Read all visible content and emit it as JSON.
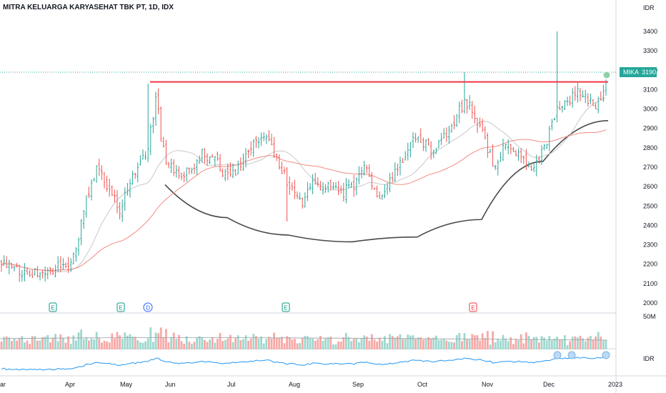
{
  "header": {
    "title": "MITRA KELUARGA KARYASEHAT TBK PT, 1D, IDX"
  },
  "price_axis": {
    "currency": "IDR",
    "ticks": [
      "3400",
      "3300",
      "3200",
      "3100",
      "3000",
      "2900",
      "2800",
      "2700",
      "2600",
      "2500",
      "2400",
      "2300",
      "2200",
      "2100",
      "2000"
    ]
  },
  "volume_axis": {
    "label": "50M",
    "currency_label": "IDR"
  },
  "price_tag": {
    "symbol": "MIKA",
    "value": "3190"
  },
  "x_axis": {
    "labels": [
      "ar",
      "Apr",
      "May",
      "Jun",
      "Jul",
      "Aug",
      "Sep",
      "Oct",
      "Nov",
      "Dec",
      "2023"
    ]
  },
  "event_markers": [
    {
      "label": "E",
      "kind": "earnings",
      "color": "#089981"
    },
    {
      "label": "E",
      "kind": "earnings",
      "color": "#089981"
    },
    {
      "label": "D",
      "kind": "dividend",
      "color": "#2962ff"
    },
    {
      "label": "E",
      "kind": "earnings",
      "color": "#089981"
    },
    {
      "label": "E",
      "kind": "earnings",
      "color": "#f23645"
    }
  ],
  "colors": {
    "up": "#26a69a",
    "down": "#ef5350",
    "resistance": "#f23645",
    "cup": "#4a4a4a",
    "ma_fast": "#c8c8c8",
    "ma_slow": "#f28b82",
    "cmf": "#2196f3",
    "tag_bg": "#26a69a"
  },
  "chart_data": {
    "type": "ohlc",
    "title": "MITRA KELUARGA KARYASEHAT TBK PT, 1D, IDX",
    "x_unit": "date",
    "x": [
      "Mar",
      "Apr",
      "May",
      "Jun",
      "Jul",
      "Aug",
      "Sep",
      "Oct",
      "Nov",
      "Dec",
      "2023"
    ],
    "ylim": [
      1950,
      3480
    ],
    "price_path": [
      [
        "Mar",
        2210
      ],
      [
        "Mar",
        2150
      ],
      [
        "Apr",
        2190
      ],
      [
        "Apr",
        2280
      ],
      [
        "Apr",
        2560
      ],
      [
        "Apr",
        2700
      ],
      [
        "Apr",
        2600
      ],
      [
        "May",
        2480
      ],
      [
        "May",
        2620
      ],
      [
        "May",
        2700
      ],
      [
        "May",
        2760
      ],
      [
        "May",
        3060
      ],
      [
        "Jun",
        2720
      ],
      [
        "Jun",
        2660
      ],
      [
        "Jun",
        2680
      ],
      [
        "Jun",
        2780
      ],
      [
        "Jun",
        2740
      ],
      [
        "Jul",
        2650
      ],
      [
        "Jul",
        2700
      ],
      [
        "Jul",
        2820
      ],
      [
        "Jul",
        2860
      ],
      [
        "Jul",
        2760
      ],
      [
        "Aug",
        2600
      ],
      [
        "Aug",
        2500
      ],
      [
        "Aug",
        2620
      ],
      [
        "Aug",
        2600
      ],
      [
        "Aug",
        2560
      ],
      [
        "Sep",
        2600
      ],
      [
        "Sep",
        2700
      ],
      [
        "Sep",
        2560
      ],
      [
        "Sep",
        2620
      ],
      [
        "Sep",
        2760
      ],
      [
        "Oct",
        2860
      ],
      [
        "Oct",
        2760
      ],
      [
        "Oct",
        2900
      ],
      [
        "Oct",
        3050
      ],
      [
        "Nov",
        2880
      ],
      [
        "Nov",
        2700
      ],
      [
        "Nov",
        2820
      ],
      [
        "Nov",
        2760
      ],
      [
        "Nov",
        2680
      ],
      [
        "Dec",
        2780
      ],
      [
        "Dec",
        2980
      ],
      [
        "Dec",
        3050
      ],
      [
        "Dec",
        3100
      ],
      [
        "Dec",
        2990
      ],
      [
        "2023",
        3190
      ]
    ],
    "series": [
      {
        "name": "MIKA",
        "type": "ohlc",
        "last": 3190
      },
      {
        "type": "line",
        "role": "resistance",
        "value": 3140,
        "from": "May",
        "to": "2023"
      },
      {
        "type": "curve",
        "role": "cup",
        "points": [
          [
            "Jun",
            2610
          ],
          [
            "Jul",
            2440
          ],
          [
            "Aug",
            2350
          ],
          [
            "Sep",
            2315
          ],
          [
            "Oct",
            2340
          ],
          [
            "Nov",
            2430
          ],
          [
            "Dec",
            2730
          ],
          [
            "2023",
            2940
          ]
        ]
      }
    ],
    "volume": {
      "axis_label": "50M"
    },
    "annotations": [
      "MIKA 3190"
    ]
  }
}
